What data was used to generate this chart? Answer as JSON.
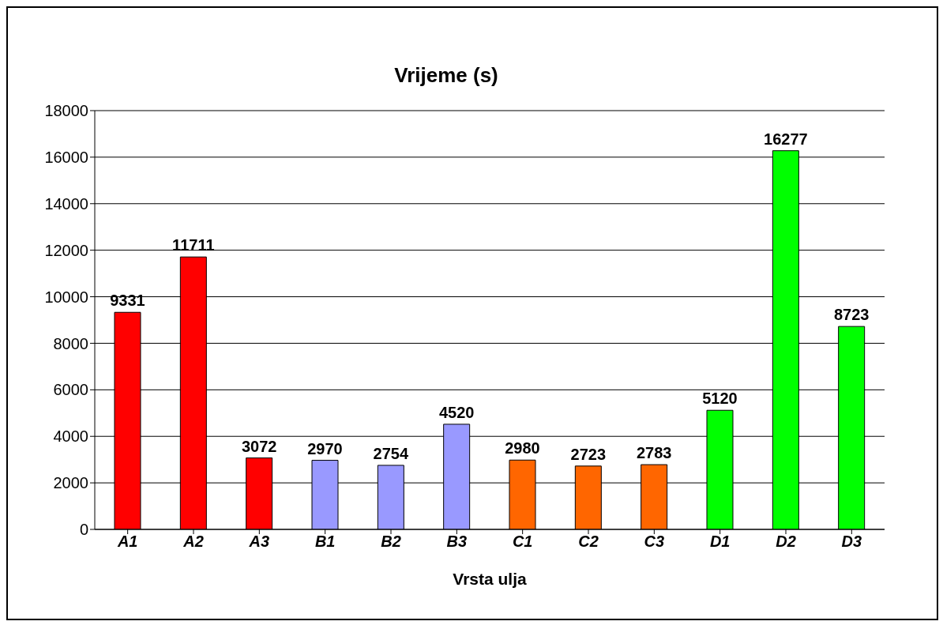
{
  "chart_data": {
    "type": "bar",
    "title": "Vrijeme (s)",
    "xlabel": "Vrsta ulja",
    "categories": [
      "A1",
      "A2",
      "A3",
      "B1",
      "B2",
      "B3",
      "C1",
      "C2",
      "C3",
      "D1",
      "D2",
      "D3"
    ],
    "values": [
      9331,
      11711,
      3072,
      2970,
      2754,
      4520,
      2980,
      2723,
      2783,
      5120,
      16277,
      8723
    ],
    "colors": [
      "#ff0000",
      "#ff0000",
      "#ff0000",
      "#9999ff",
      "#9999ff",
      "#9999ff",
      "#ff6600",
      "#ff6600",
      "#ff6600",
      "#00ff00",
      "#00ff00",
      "#00ff00"
    ],
    "ylim": [
      0,
      18000
    ],
    "yticks": [
      0,
      2000,
      4000,
      6000,
      8000,
      10000,
      12000,
      14000,
      16000,
      18000
    ],
    "grid": "y",
    "data_labels": true,
    "legend": false
  }
}
